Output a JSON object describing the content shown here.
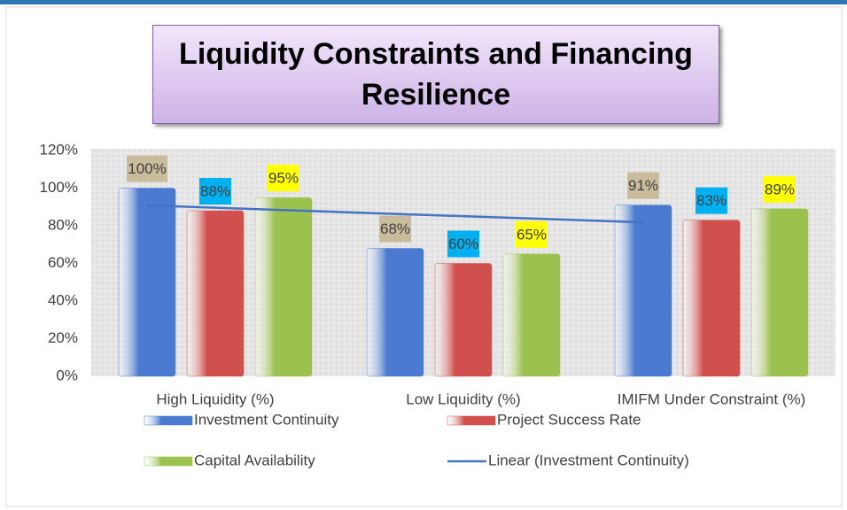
{
  "chart_data": {
    "type": "bar",
    "title": "Liquidity Constraints and Financing Resilience",
    "categories": [
      "High Liquidity (%)",
      "Low Liquidity (%)",
      "IMIFM Under Constraint (%)"
    ],
    "series": [
      {
        "name": "Investment Continuity",
        "color": "#4a7bd0",
        "label_color": "#c8bc9c",
        "values": [
          100,
          68,
          91
        ],
        "value_labels": [
          "100%",
          "68%",
          "91%"
        ]
      },
      {
        "name": "Project Success Rate",
        "color": "#d0504d",
        "label_color": "#00b0f0",
        "values": [
          88,
          60,
          83
        ],
        "value_labels": [
          "88%",
          "60%",
          "83%"
        ]
      },
      {
        "name": "Capital Availability",
        "color": "#9bc24e",
        "label_color": "#ffff00",
        "values": [
          95,
          65,
          89
        ],
        "value_labels": [
          "95%",
          "65%",
          "89%"
        ]
      }
    ],
    "trendline": {
      "type": "linear",
      "series": 0,
      "name": "Linear (Investment Continuity)",
      "color": "#4472c4"
    },
    "ylim": [
      0,
      120
    ],
    "yticks": [
      {
        "value": 0,
        "label": "0%"
      },
      {
        "value": 20,
        "label": "20%"
      },
      {
        "value": 40,
        "label": "40%"
      },
      {
        "value": 60,
        "label": "60%"
      },
      {
        "value": 80,
        "label": "80%"
      },
      {
        "value": 100,
        "label": "100%"
      },
      {
        "value": 120,
        "label": "120%"
      }
    ],
    "grid": false,
    "legend": "bottom"
  }
}
